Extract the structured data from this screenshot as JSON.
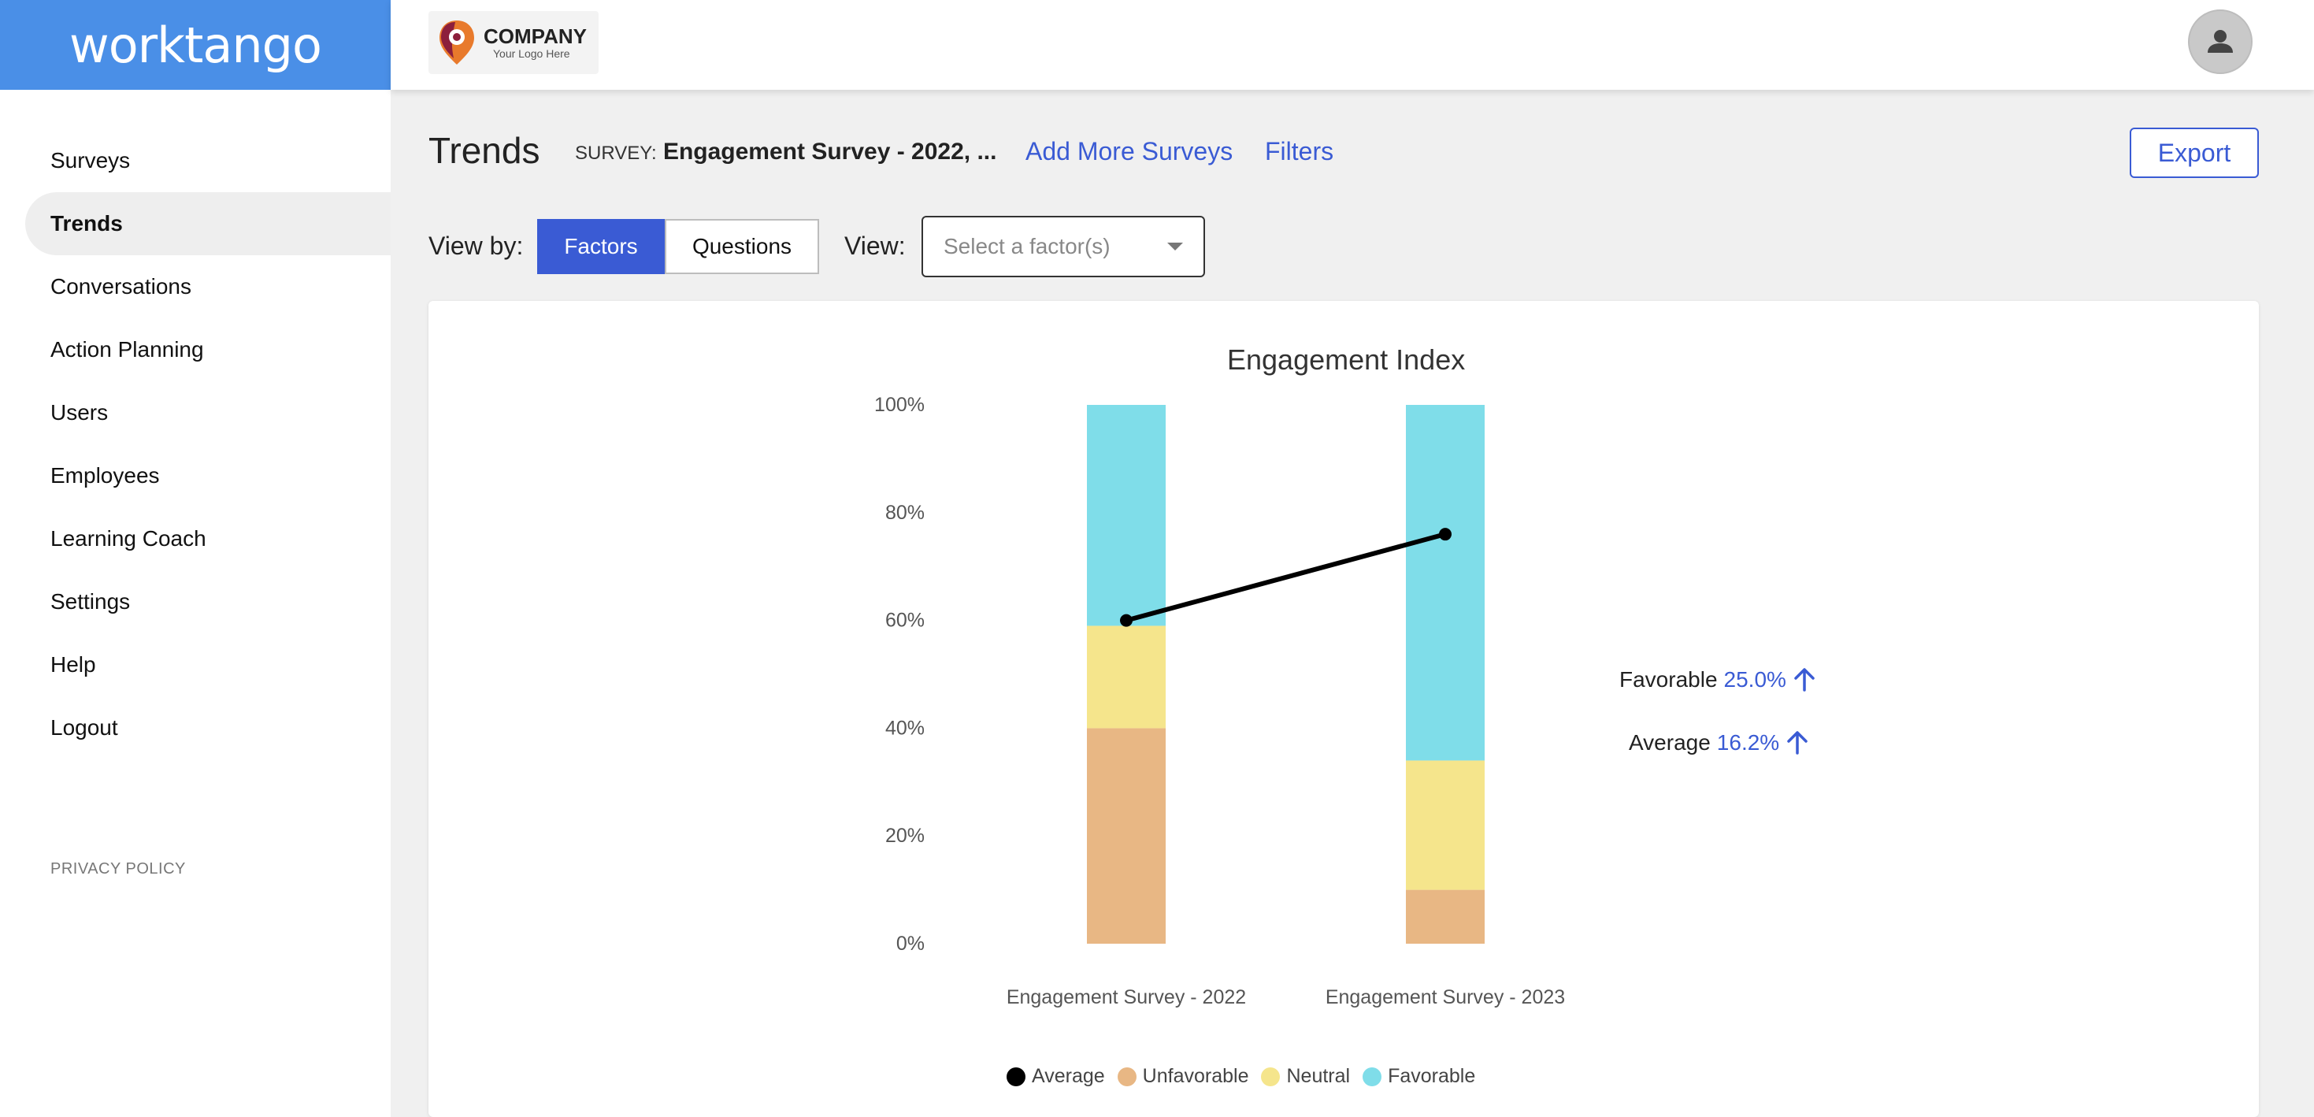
{
  "brand": {
    "name": "worktango"
  },
  "logo": {
    "company": "COMPANY",
    "tagline": "Your Logo Here"
  },
  "nav": {
    "items": [
      {
        "label": "Surveys"
      },
      {
        "label": "Trends"
      },
      {
        "label": "Conversations"
      },
      {
        "label": "Action Planning"
      },
      {
        "label": "Users"
      },
      {
        "label": "Employees"
      },
      {
        "label": "Learning Coach"
      },
      {
        "label": "Settings"
      },
      {
        "label": "Help"
      },
      {
        "label": "Logout"
      }
    ],
    "active": "Trends",
    "privacy": "PRIVACY POLICY"
  },
  "header": {
    "title": "Trends",
    "survey_label": "SURVEY:",
    "survey_name": "Engagement Survey - 2022, ...",
    "add_surveys": "Add More Surveys",
    "filters": "Filters",
    "export": "Export"
  },
  "controls": {
    "view_by_label": "View by:",
    "view_by_options": [
      "Factors",
      "Questions"
    ],
    "view_by_selected": "Factors",
    "view_label": "View:",
    "view_placeholder": "Select a factor(s)"
  },
  "stats": {
    "favorable_label": "Favorable",
    "favorable_value": "25.0%",
    "average_label": "Average",
    "average_value": "16.2%"
  },
  "colors": {
    "accent": "#3a5bd4",
    "brand": "#4a8fe7",
    "unfavorable": "#e8b784",
    "neutral": "#f5e58c",
    "favorable": "#7fdde9",
    "average": "#000000"
  },
  "chart_data": {
    "type": "bar",
    "stacked": true,
    "title": "Engagement Index",
    "categories": [
      "Engagement Survey - 2022",
      "Engagement Survey - 2023"
    ],
    "series": [
      {
        "name": "Unfavorable",
        "values": [
          40,
          10
        ]
      },
      {
        "name": "Neutral",
        "values": [
          19,
          24
        ]
      },
      {
        "name": "Favorable",
        "values": [
          41,
          66
        ]
      }
    ],
    "line_series": {
      "name": "Average",
      "values": [
        60,
        76
      ]
    },
    "ylim": [
      0,
      100
    ],
    "yticks": [
      "0%",
      "20%",
      "40%",
      "60%",
      "80%",
      "100%"
    ],
    "legend": [
      "Average",
      "Unfavorable",
      "Neutral",
      "Favorable"
    ],
    "legend_position": "bottom",
    "grid": false
  }
}
